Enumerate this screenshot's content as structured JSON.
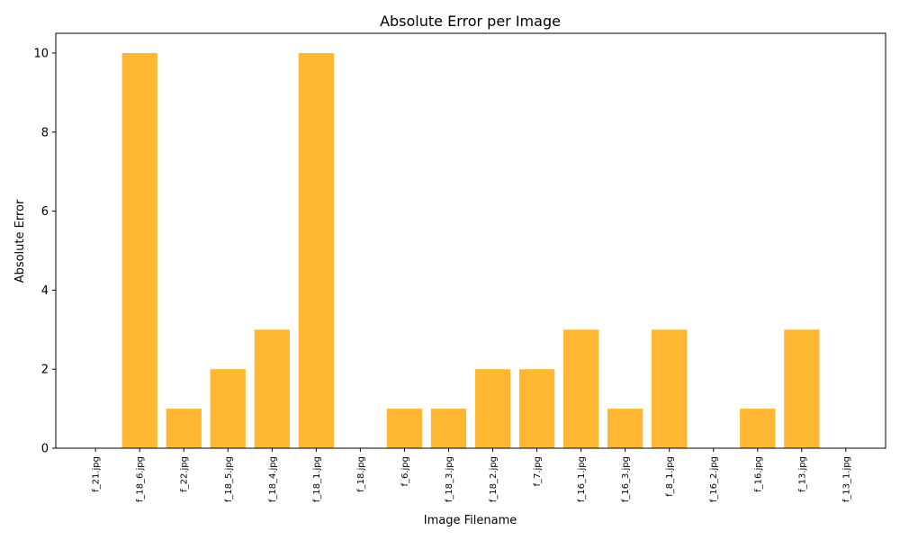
{
  "chart_data": {
    "type": "bar",
    "title": "Absolute Error per Image",
    "xlabel": "Image Filename",
    "ylabel": "Absolute Error",
    "categories": [
      "f_21.jpg",
      "f_18_6.jpg",
      "f_22.jpg",
      "f_18_5.jpg",
      "f_18_4.jpg",
      "f_18_1.jpg",
      "f_18.jpg",
      "f_6.jpg",
      "f_18_3.jpg",
      "f_18_2.jpg",
      "f_7.jpg",
      "f_16_1.jpg",
      "f_16_3.jpg",
      "f_8_1.jpg",
      "f_16_2.jpg",
      "f_16.jpg",
      "f_13.jpg",
      "f_13_1.jpg"
    ],
    "values": [
      0,
      10,
      1,
      2,
      3,
      10,
      0,
      1,
      1,
      2,
      2,
      3,
      1,
      3,
      0,
      1,
      3,
      0
    ],
    "ylim": [
      0,
      10.5
    ],
    "yticks": [
      0,
      2,
      4,
      6,
      8,
      10
    ],
    "bar_color": "#FFB733",
    "grid": false,
    "legend": false
  }
}
